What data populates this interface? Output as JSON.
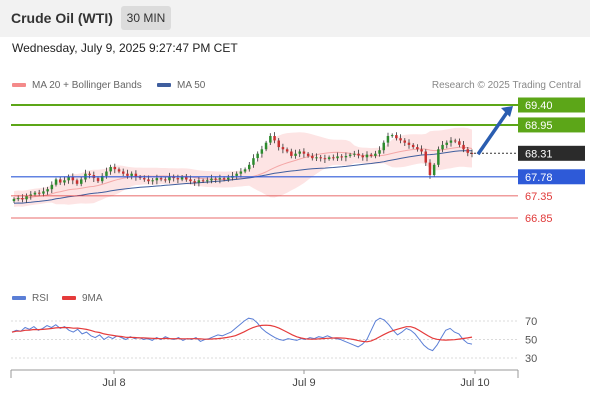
{
  "header": {
    "title": "Crude Oil (WTI)",
    "timeframe": "30 MIN"
  },
  "datetime": "Wednesday, July 9, 2025 9:27:47 PM CET",
  "legend": {
    "ma20": "MA 20 + Bollinger Bands",
    "ma50": "MA 50",
    "rsi": "RSI",
    "rsi_ma": "9MA"
  },
  "copyright": "Research © 2025 Trading Central",
  "colors": {
    "green": "#5ca618",
    "blue": "#2e5ad8",
    "red": "#e03a3a",
    "dark": "#2b2b2b",
    "ma20": "#f4a7a7",
    "ma50": "#3f5e9e",
    "band": "#fde4e4",
    "rsi_line": "#5b7fd6",
    "rsi_ma_line": "#e53b3b"
  },
  "chart_data": [
    {
      "type": "line",
      "subtype": "candlestick",
      "title": "Crude Oil (WTI)",
      "x_ticks": [
        "Jul 8",
        "Jul 9",
        "Jul 10"
      ],
      "ylim": [
        66.55,
        69.65
      ],
      "series": [
        {
          "name": "MA 20 + Bollinger Bands"
        },
        {
          "name": "MA 50"
        }
      ],
      "close_approx": [
        67.28,
        67.3,
        67.27,
        67.35,
        67.38,
        67.42,
        67.4,
        67.45,
        67.5,
        67.6,
        67.72,
        67.65,
        67.7,
        67.78,
        67.7,
        67.62,
        67.72,
        67.85,
        67.82,
        67.75,
        67.68,
        67.8,
        67.9,
        68.0,
        67.95,
        67.9,
        67.85,
        67.8,
        67.85,
        67.78,
        67.75,
        67.72,
        67.68,
        67.7,
        67.75,
        67.72,
        67.7,
        67.78,
        67.75,
        67.72,
        67.78,
        67.72,
        67.68,
        67.65,
        67.7,
        67.68,
        67.7,
        67.74,
        67.72,
        67.75,
        67.72,
        67.76,
        67.8,
        67.85,
        67.9,
        67.95,
        68.05,
        68.2,
        68.3,
        68.4,
        68.55,
        68.7,
        68.6,
        68.45,
        68.4,
        68.35,
        68.25,
        68.3,
        68.35,
        68.3,
        68.25,
        68.2,
        68.22,
        68.2,
        68.18,
        68.22,
        68.2,
        68.24,
        68.22,
        68.25,
        68.28,
        68.3,
        68.26,
        68.22,
        68.28,
        68.25,
        68.3,
        68.38,
        68.55,
        68.7,
        68.72,
        68.65,
        68.6,
        68.55,
        68.5,
        68.45,
        68.4,
        68.35,
        68.1,
        67.82,
        68.05,
        68.4,
        68.5,
        68.55,
        68.6,
        68.58,
        68.5,
        68.4,
        68.32,
        68.31
      ],
      "horizontal_levels": [
        {
          "label": "69.40",
          "value": 69.4,
          "color": "#5ca618"
        },
        {
          "label": "68.95",
          "value": 68.95,
          "color": "#5ca618"
        },
        {
          "label": "68.31",
          "value": 68.31,
          "color": "#2b2b2b"
        },
        {
          "label": "67.78",
          "value": 67.78,
          "color": "#2e5ad8"
        },
        {
          "label": "67.35",
          "value": 67.35,
          "color": "#e03a3a"
        },
        {
          "label": "66.85",
          "value": 66.85,
          "color": "#e03a3a"
        }
      ],
      "projection": {
        "from": 68.31,
        "to": 69.4
      }
    },
    {
      "type": "line",
      "series": [
        {
          "name": "RSI"
        },
        {
          "name": "9MA"
        }
      ],
      "ylim": [
        25,
        80
      ],
      "y_ticks": [
        "70",
        "50",
        "30"
      ],
      "rsi_approx": [
        58,
        60,
        59,
        63,
        61,
        64,
        60,
        62,
        65,
        63,
        66,
        62,
        64,
        60,
        58,
        61,
        56,
        58,
        54,
        52,
        55,
        50,
        53,
        51,
        54,
        52,
        50,
        53,
        51,
        52,
        50,
        51,
        49,
        52,
        50,
        53,
        51,
        50,
        52,
        49,
        51,
        50,
        52,
        48,
        50,
        51,
        53,
        55,
        54,
        56,
        58,
        62,
        66,
        70,
        73,
        72,
        68,
        62,
        58,
        55,
        52,
        50,
        49,
        51,
        50,
        49,
        51,
        50,
        52,
        51,
        53,
        52,
        54,
        52,
        51,
        50,
        48,
        46,
        44,
        42,
        45,
        50,
        60,
        70,
        73,
        71,
        66,
        60,
        55,
        58,
        62,
        60,
        56,
        50,
        44,
        40,
        38,
        44,
        52,
        60,
        62,
        58,
        56,
        50,
        46,
        45
      ]
    }
  ]
}
